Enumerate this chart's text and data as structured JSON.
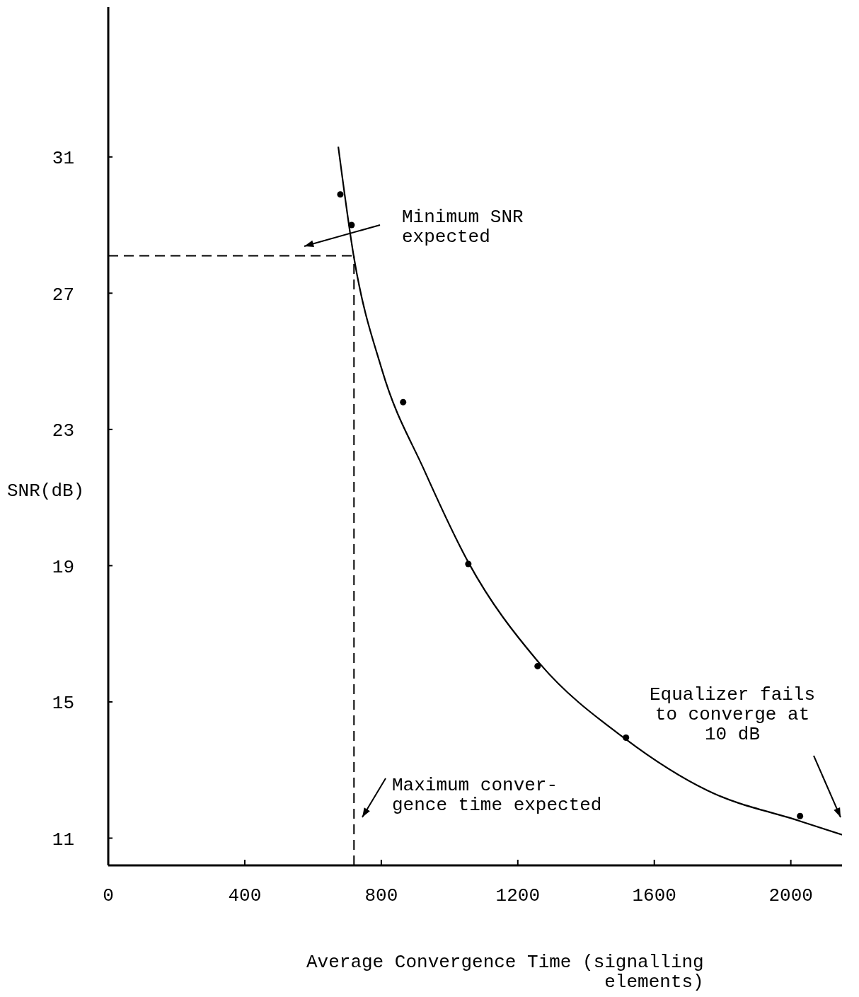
{
  "chart_data": {
    "type": "line",
    "xlabel": "Average Convergence Time (signalling\nelements)",
    "ylabel": "SNR(dB)",
    "xlim": [
      0,
      2150
    ],
    "ylim": [
      10.2,
      35.4
    ],
    "xticks": [
      0,
      400,
      800,
      1200,
      1600,
      2000
    ],
    "yticks": [
      11,
      15,
      19,
      23,
      27,
      31
    ],
    "grid": false,
    "legend": false,
    "series": [
      {
        "color": "#000000",
        "marker": "none",
        "line_style": "solid",
        "x": [
          674,
          719,
          802,
          926,
          1055,
          1258,
          1517,
          1755,
          2027,
          2150
        ],
        "values": [
          31.3,
          28.1,
          24.75,
          21.8,
          19.1,
          16.2,
          13.9,
          12.4,
          11.5,
          11.1
        ]
      },
      {
        "type": "scatter",
        "color": "#000000",
        "marker": "circle",
        "x": [
          680,
          713,
          864,
          1055,
          1258,
          1517,
          2027
        ],
        "values": [
          29.9,
          29.0,
          23.8,
          19.05,
          16.05,
          13.95,
          11.65
        ]
      }
    ],
    "ref_lines": [
      {
        "axis": "y",
        "value": 28.1,
        "line_style": "dashed",
        "color": "#000000"
      },
      {
        "axis": "x",
        "value": 720,
        "line_style": "dashed",
        "color": "#000000"
      }
    ],
    "annotations": [
      "Minimum SNR\nexpected",
      "Maximum conver-\ngence time expected",
      "Equalizer fails\nto converge at\n10 dB"
    ]
  }
}
